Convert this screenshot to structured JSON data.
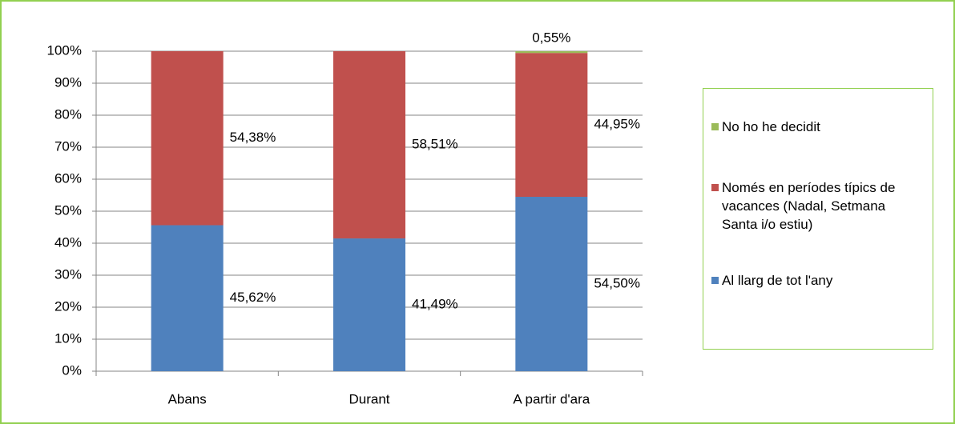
{
  "chart_data": {
    "type": "stacked_bar",
    "categories": [
      "Abans",
      "Durant",
      "A partir d'ara"
    ],
    "series": [
      {
        "name": "Al llarg de tot l'any",
        "color": "#4f81bd",
        "values": [
          45.62,
          41.49,
          54.5
        ],
        "value_labels": [
          "45,62%",
          "41,49%",
          "54,50%"
        ]
      },
      {
        "name": "Només en períodes típics de vacances (Nadal, Setmana Santa i/o estiu)",
        "color": "#c0504d",
        "values": [
          54.38,
          58.51,
          44.95
        ],
        "value_labels": [
          "54,38%",
          "58,51%",
          "44,95%"
        ]
      },
      {
        "name": "No ho he decidit",
        "color": "#9bbb59",
        "values": [
          null,
          null,
          0.55
        ],
        "value_labels": [
          null,
          null,
          "0,55%"
        ]
      }
    ],
    "ylim": [
      0,
      100
    ],
    "yticks": [
      {
        "value": 0,
        "label": "0%"
      },
      {
        "value": 10,
        "label": "10%"
      },
      {
        "value": 20,
        "label": "20%"
      },
      {
        "value": 30,
        "label": "30%"
      },
      {
        "value": 40,
        "label": "40%"
      },
      {
        "value": 50,
        "label": "50%"
      },
      {
        "value": 60,
        "label": "60%"
      },
      {
        "value": 70,
        "label": "70%"
      },
      {
        "value": 80,
        "label": "80%"
      },
      {
        "value": 90,
        "label": "90%"
      },
      {
        "value": 100,
        "label": "100%"
      }
    ],
    "grid": true,
    "legend": "right"
  }
}
